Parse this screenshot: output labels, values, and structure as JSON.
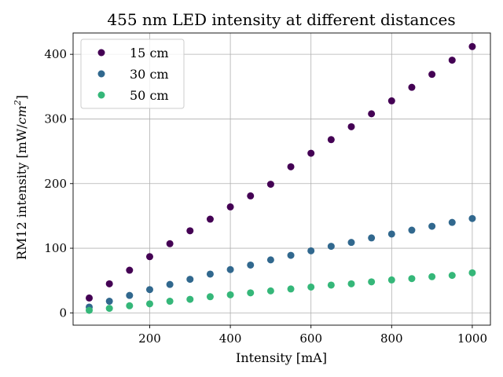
{
  "chart_data": {
    "type": "scatter",
    "title": "455 nm LED intensity at different distances",
    "xlabel": "Intensity [mA]",
    "ylabel_prefix": "RM12 intensity [mW/",
    "ylabel_math": "cm",
    "ylabel_sup": "2",
    "ylabel_suffix": "]",
    "xlim": [
      10,
      1045
    ],
    "ylim": [
      -19,
      433
    ],
    "xticks": [
      200,
      400,
      600,
      800,
      1000
    ],
    "yticks": [
      0,
      100,
      200,
      300,
      400
    ],
    "grid": true,
    "legend_position": "top-left",
    "series": [
      {
        "name": "15 cm",
        "color": "#440154",
        "x": [
          50,
          100,
          150,
          200,
          250,
          300,
          350,
          400,
          450,
          500,
          550,
          600,
          650,
          700,
          750,
          800,
          850,
          900,
          950,
          1000
        ],
        "y": [
          23,
          45,
          66,
          87,
          107,
          127,
          145,
          164,
          181,
          199,
          226,
          247,
          268,
          288,
          308,
          328,
          349,
          369,
          391,
          412
        ]
      },
      {
        "name": "30 cm",
        "color": "#31688e",
        "x": [
          50,
          100,
          150,
          200,
          250,
          300,
          350,
          400,
          450,
          500,
          550,
          600,
          650,
          700,
          750,
          800,
          850,
          900,
          950,
          1000
        ],
        "y": [
          9,
          18,
          27,
          36,
          44,
          52,
          60,
          67,
          74,
          82,
          89,
          96,
          103,
          109,
          116,
          122,
          128,
          134,
          140,
          146
        ]
      },
      {
        "name": "50 cm",
        "color": "#35b779",
        "x": [
          50,
          100,
          150,
          200,
          250,
          300,
          350,
          400,
          450,
          500,
          550,
          600,
          650,
          700,
          750,
          800,
          850,
          900,
          950,
          1000
        ],
        "y": [
          4,
          7,
          11,
          14,
          18,
          21,
          25,
          28,
          31,
          34,
          37,
          40,
          43,
          45,
          48,
          51,
          53,
          56,
          58,
          62
        ]
      }
    ]
  }
}
